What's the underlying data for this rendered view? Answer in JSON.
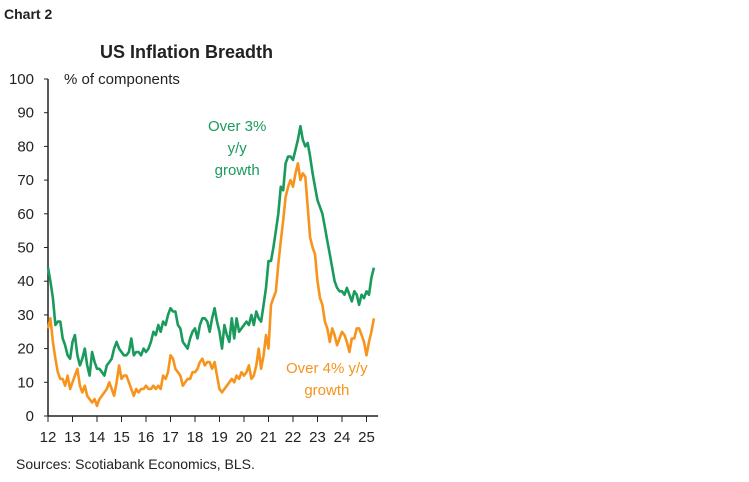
{
  "header": {
    "chart_label": "Chart 2"
  },
  "footer": {
    "source": "Sources: Scotiabank Economics, BLS."
  },
  "chart_data": {
    "type": "line",
    "title": "US Inflation Breadth",
    "ylabel": "% of components",
    "xlabel": "",
    "ylim": [
      0,
      100
    ],
    "yticks": [
      "0",
      "10",
      "20",
      "30",
      "40",
      "50",
      "60",
      "70",
      "80",
      "90",
      "100"
    ],
    "xticks": [
      "12",
      "13",
      "14",
      "15",
      "16",
      "17",
      "18",
      "19",
      "20",
      "21",
      "22",
      "23",
      "24",
      "25"
    ],
    "xlim": [
      12,
      25.35
    ],
    "grid": false,
    "series": [
      {
        "name": "Over 3% y/y growth",
        "annotation": [
          "Over 3%",
          "y/y",
          "growth"
        ],
        "color": "#1a9a5c",
        "points": [
          [
            12.0,
            44
          ],
          [
            12.1,
            40
          ],
          [
            12.2,
            35
          ],
          [
            12.3,
            27
          ],
          [
            12.4,
            28
          ],
          [
            12.5,
            28
          ],
          [
            12.6,
            23
          ],
          [
            12.7,
            21
          ],
          [
            12.8,
            18
          ],
          [
            12.9,
            17
          ],
          [
            13.0,
            22
          ],
          [
            13.1,
            24
          ],
          [
            13.2,
            18
          ],
          [
            13.3,
            15
          ],
          [
            13.4,
            17
          ],
          [
            13.5,
            20
          ],
          [
            13.6,
            15
          ],
          [
            13.7,
            12
          ],
          [
            13.8,
            19
          ],
          [
            13.9,
            16
          ],
          [
            14.0,
            14
          ],
          [
            14.1,
            14
          ],
          [
            14.2,
            13
          ],
          [
            14.3,
            12
          ],
          [
            14.4,
            15
          ],
          [
            14.5,
            16
          ],
          [
            14.6,
            17
          ],
          [
            14.7,
            20
          ],
          [
            14.8,
            22
          ],
          [
            14.9,
            20
          ],
          [
            15.0,
            19
          ],
          [
            15.1,
            18
          ],
          [
            15.2,
            18
          ],
          [
            15.3,
            19
          ],
          [
            15.4,
            23
          ],
          [
            15.5,
            18
          ],
          [
            15.6,
            19
          ],
          [
            15.7,
            19
          ],
          [
            15.8,
            18
          ],
          [
            15.9,
            20
          ],
          [
            16.0,
            19
          ],
          [
            16.1,
            20
          ],
          [
            16.2,
            22
          ],
          [
            16.3,
            25
          ],
          [
            16.4,
            24
          ],
          [
            16.5,
            27
          ],
          [
            16.6,
            25
          ],
          [
            16.7,
            28
          ],
          [
            16.8,
            27
          ],
          [
            16.9,
            30
          ],
          [
            17.0,
            32
          ],
          [
            17.1,
            31
          ],
          [
            17.2,
            31
          ],
          [
            17.3,
            27
          ],
          [
            17.4,
            26
          ],
          [
            17.5,
            22
          ],
          [
            17.6,
            21
          ],
          [
            17.7,
            20
          ],
          [
            17.8,
            23
          ],
          [
            17.9,
            25
          ],
          [
            18.0,
            26
          ],
          [
            18.1,
            23
          ],
          [
            18.2,
            27
          ],
          [
            18.3,
            29
          ],
          [
            18.4,
            29
          ],
          [
            18.5,
            28
          ],
          [
            18.6,
            25
          ],
          [
            18.7,
            29
          ],
          [
            18.8,
            32
          ],
          [
            18.9,
            28
          ],
          [
            19.0,
            25
          ],
          [
            19.1,
            20
          ],
          [
            19.2,
            27
          ],
          [
            19.3,
            24
          ],
          [
            19.4,
            22
          ],
          [
            19.5,
            29
          ],
          [
            19.6,
            23
          ],
          [
            19.7,
            29
          ],
          [
            19.8,
            25
          ],
          [
            19.9,
            26
          ],
          [
            20.0,
            27
          ],
          [
            20.1,
            28
          ],
          [
            20.2,
            27
          ],
          [
            20.3,
            30
          ],
          [
            20.4,
            27
          ],
          [
            20.5,
            31
          ],
          [
            20.6,
            29
          ],
          [
            20.7,
            28
          ],
          [
            20.8,
            33
          ],
          [
            20.9,
            38
          ],
          [
            21.0,
            46
          ],
          [
            21.1,
            46
          ],
          [
            21.2,
            50
          ],
          [
            21.3,
            55
          ],
          [
            21.4,
            60
          ],
          [
            21.5,
            68
          ],
          [
            21.6,
            67
          ],
          [
            21.7,
            75
          ],
          [
            21.8,
            77
          ],
          [
            21.9,
            77
          ],
          [
            22.0,
            76
          ],
          [
            22.1,
            79
          ],
          [
            22.2,
            82
          ],
          [
            22.3,
            86
          ],
          [
            22.4,
            82
          ],
          [
            22.5,
            80
          ],
          [
            22.6,
            81
          ],
          [
            22.7,
            77
          ],
          [
            22.8,
            72
          ],
          [
            22.9,
            68
          ],
          [
            23.0,
            64
          ],
          [
            23.1,
            62
          ],
          [
            23.2,
            60
          ],
          [
            23.3,
            56
          ],
          [
            23.4,
            52
          ],
          [
            23.5,
            48
          ],
          [
            23.6,
            44
          ],
          [
            23.7,
            40
          ],
          [
            23.8,
            38
          ],
          [
            23.9,
            37
          ],
          [
            24.0,
            37
          ],
          [
            24.1,
            36
          ],
          [
            24.2,
            38
          ],
          [
            24.3,
            36
          ],
          [
            24.4,
            34
          ],
          [
            24.5,
            37
          ],
          [
            24.6,
            36
          ],
          [
            24.7,
            33
          ],
          [
            24.8,
            36
          ],
          [
            24.9,
            35
          ],
          [
            25.0,
            37
          ],
          [
            25.1,
            36
          ],
          [
            25.2,
            41
          ],
          [
            25.3,
            44
          ]
        ]
      },
      {
        "name": "Over 4% y/y growth",
        "annotation": [
          "Over 4% y/y",
          "growth"
        ],
        "color": "#f7941d",
        "points": [
          [
            12.0,
            26
          ],
          [
            12.1,
            29
          ],
          [
            12.2,
            22
          ],
          [
            12.3,
            17
          ],
          [
            12.4,
            13
          ],
          [
            12.5,
            11
          ],
          [
            12.6,
            11
          ],
          [
            12.7,
            9
          ],
          [
            12.8,
            12
          ],
          [
            12.9,
            8
          ],
          [
            13.0,
            10
          ],
          [
            13.1,
            12
          ],
          [
            13.2,
            14
          ],
          [
            13.3,
            9
          ],
          [
            13.4,
            7
          ],
          [
            13.5,
            9
          ],
          [
            13.6,
            6
          ],
          [
            13.7,
            5
          ],
          [
            13.8,
            4
          ],
          [
            13.9,
            5
          ],
          [
            14.0,
            3
          ],
          [
            14.1,
            5
          ],
          [
            14.2,
            6
          ],
          [
            14.3,
            7
          ],
          [
            14.4,
            8
          ],
          [
            14.5,
            10
          ],
          [
            14.6,
            8
          ],
          [
            14.7,
            6
          ],
          [
            14.8,
            10
          ],
          [
            14.9,
            15
          ],
          [
            15.0,
            11
          ],
          [
            15.1,
            12
          ],
          [
            15.2,
            12
          ],
          [
            15.3,
            10
          ],
          [
            15.4,
            8
          ],
          [
            15.5,
            6
          ],
          [
            15.6,
            8
          ],
          [
            15.7,
            7
          ],
          [
            15.8,
            8
          ],
          [
            15.9,
            8
          ],
          [
            16.0,
            9
          ],
          [
            16.1,
            8
          ],
          [
            16.2,
            8
          ],
          [
            16.3,
            9
          ],
          [
            16.4,
            8
          ],
          [
            16.5,
            9
          ],
          [
            16.6,
            8
          ],
          [
            16.7,
            12
          ],
          [
            16.8,
            11
          ],
          [
            16.9,
            13
          ],
          [
            17.0,
            18
          ],
          [
            17.1,
            17
          ],
          [
            17.2,
            14
          ],
          [
            17.3,
            13
          ],
          [
            17.4,
            12
          ],
          [
            17.5,
            9
          ],
          [
            17.6,
            10
          ],
          [
            17.7,
            11
          ],
          [
            17.8,
            11
          ],
          [
            17.9,
            13
          ],
          [
            18.0,
            13
          ],
          [
            18.1,
            14
          ],
          [
            18.2,
            16
          ],
          [
            18.3,
            17
          ],
          [
            18.4,
            15
          ],
          [
            18.5,
            16
          ],
          [
            18.6,
            16
          ],
          [
            18.7,
            14
          ],
          [
            18.8,
            16
          ],
          [
            18.9,
            12
          ],
          [
            19.0,
            8
          ],
          [
            19.1,
            7
          ],
          [
            19.2,
            8
          ],
          [
            19.3,
            9
          ],
          [
            19.4,
            10
          ],
          [
            19.5,
            11
          ],
          [
            19.6,
            10
          ],
          [
            19.7,
            12
          ],
          [
            19.8,
            11
          ],
          [
            19.9,
            13
          ],
          [
            20.0,
            12
          ],
          [
            20.1,
            13
          ],
          [
            20.2,
            15
          ],
          [
            20.3,
            11
          ],
          [
            20.4,
            12
          ],
          [
            20.5,
            15
          ],
          [
            20.6,
            20
          ],
          [
            20.7,
            14
          ],
          [
            20.8,
            18
          ],
          [
            20.9,
            24
          ],
          [
            21.0,
            20
          ],
          [
            21.1,
            33
          ],
          [
            21.2,
            35
          ],
          [
            21.3,
            37
          ],
          [
            21.4,
            45
          ],
          [
            21.5,
            52
          ],
          [
            21.6,
            58
          ],
          [
            21.7,
            65
          ],
          [
            21.8,
            68
          ],
          [
            21.9,
            70
          ],
          [
            22.0,
            68
          ],
          [
            22.1,
            72
          ],
          [
            22.2,
            75
          ],
          [
            22.3,
            70
          ],
          [
            22.4,
            72
          ],
          [
            22.5,
            71
          ],
          [
            22.6,
            62
          ],
          [
            22.7,
            53
          ],
          [
            22.8,
            50
          ],
          [
            22.9,
            48
          ],
          [
            23.0,
            40
          ],
          [
            23.1,
            35
          ],
          [
            23.2,
            33
          ],
          [
            23.3,
            28
          ],
          [
            23.4,
            26
          ],
          [
            23.5,
            22
          ],
          [
            23.6,
            26
          ],
          [
            23.7,
            24
          ],
          [
            23.8,
            21
          ],
          [
            23.9,
            23
          ],
          [
            24.0,
            25
          ],
          [
            24.1,
            24
          ],
          [
            24.2,
            22
          ],
          [
            24.3,
            19
          ],
          [
            24.4,
            23
          ],
          [
            24.5,
            23
          ],
          [
            24.6,
            26
          ],
          [
            24.7,
            26
          ],
          [
            24.8,
            24
          ],
          [
            24.9,
            22
          ],
          [
            25.0,
            18
          ],
          [
            25.1,
            22
          ],
          [
            25.2,
            25
          ],
          [
            25.3,
            29
          ]
        ]
      }
    ]
  }
}
